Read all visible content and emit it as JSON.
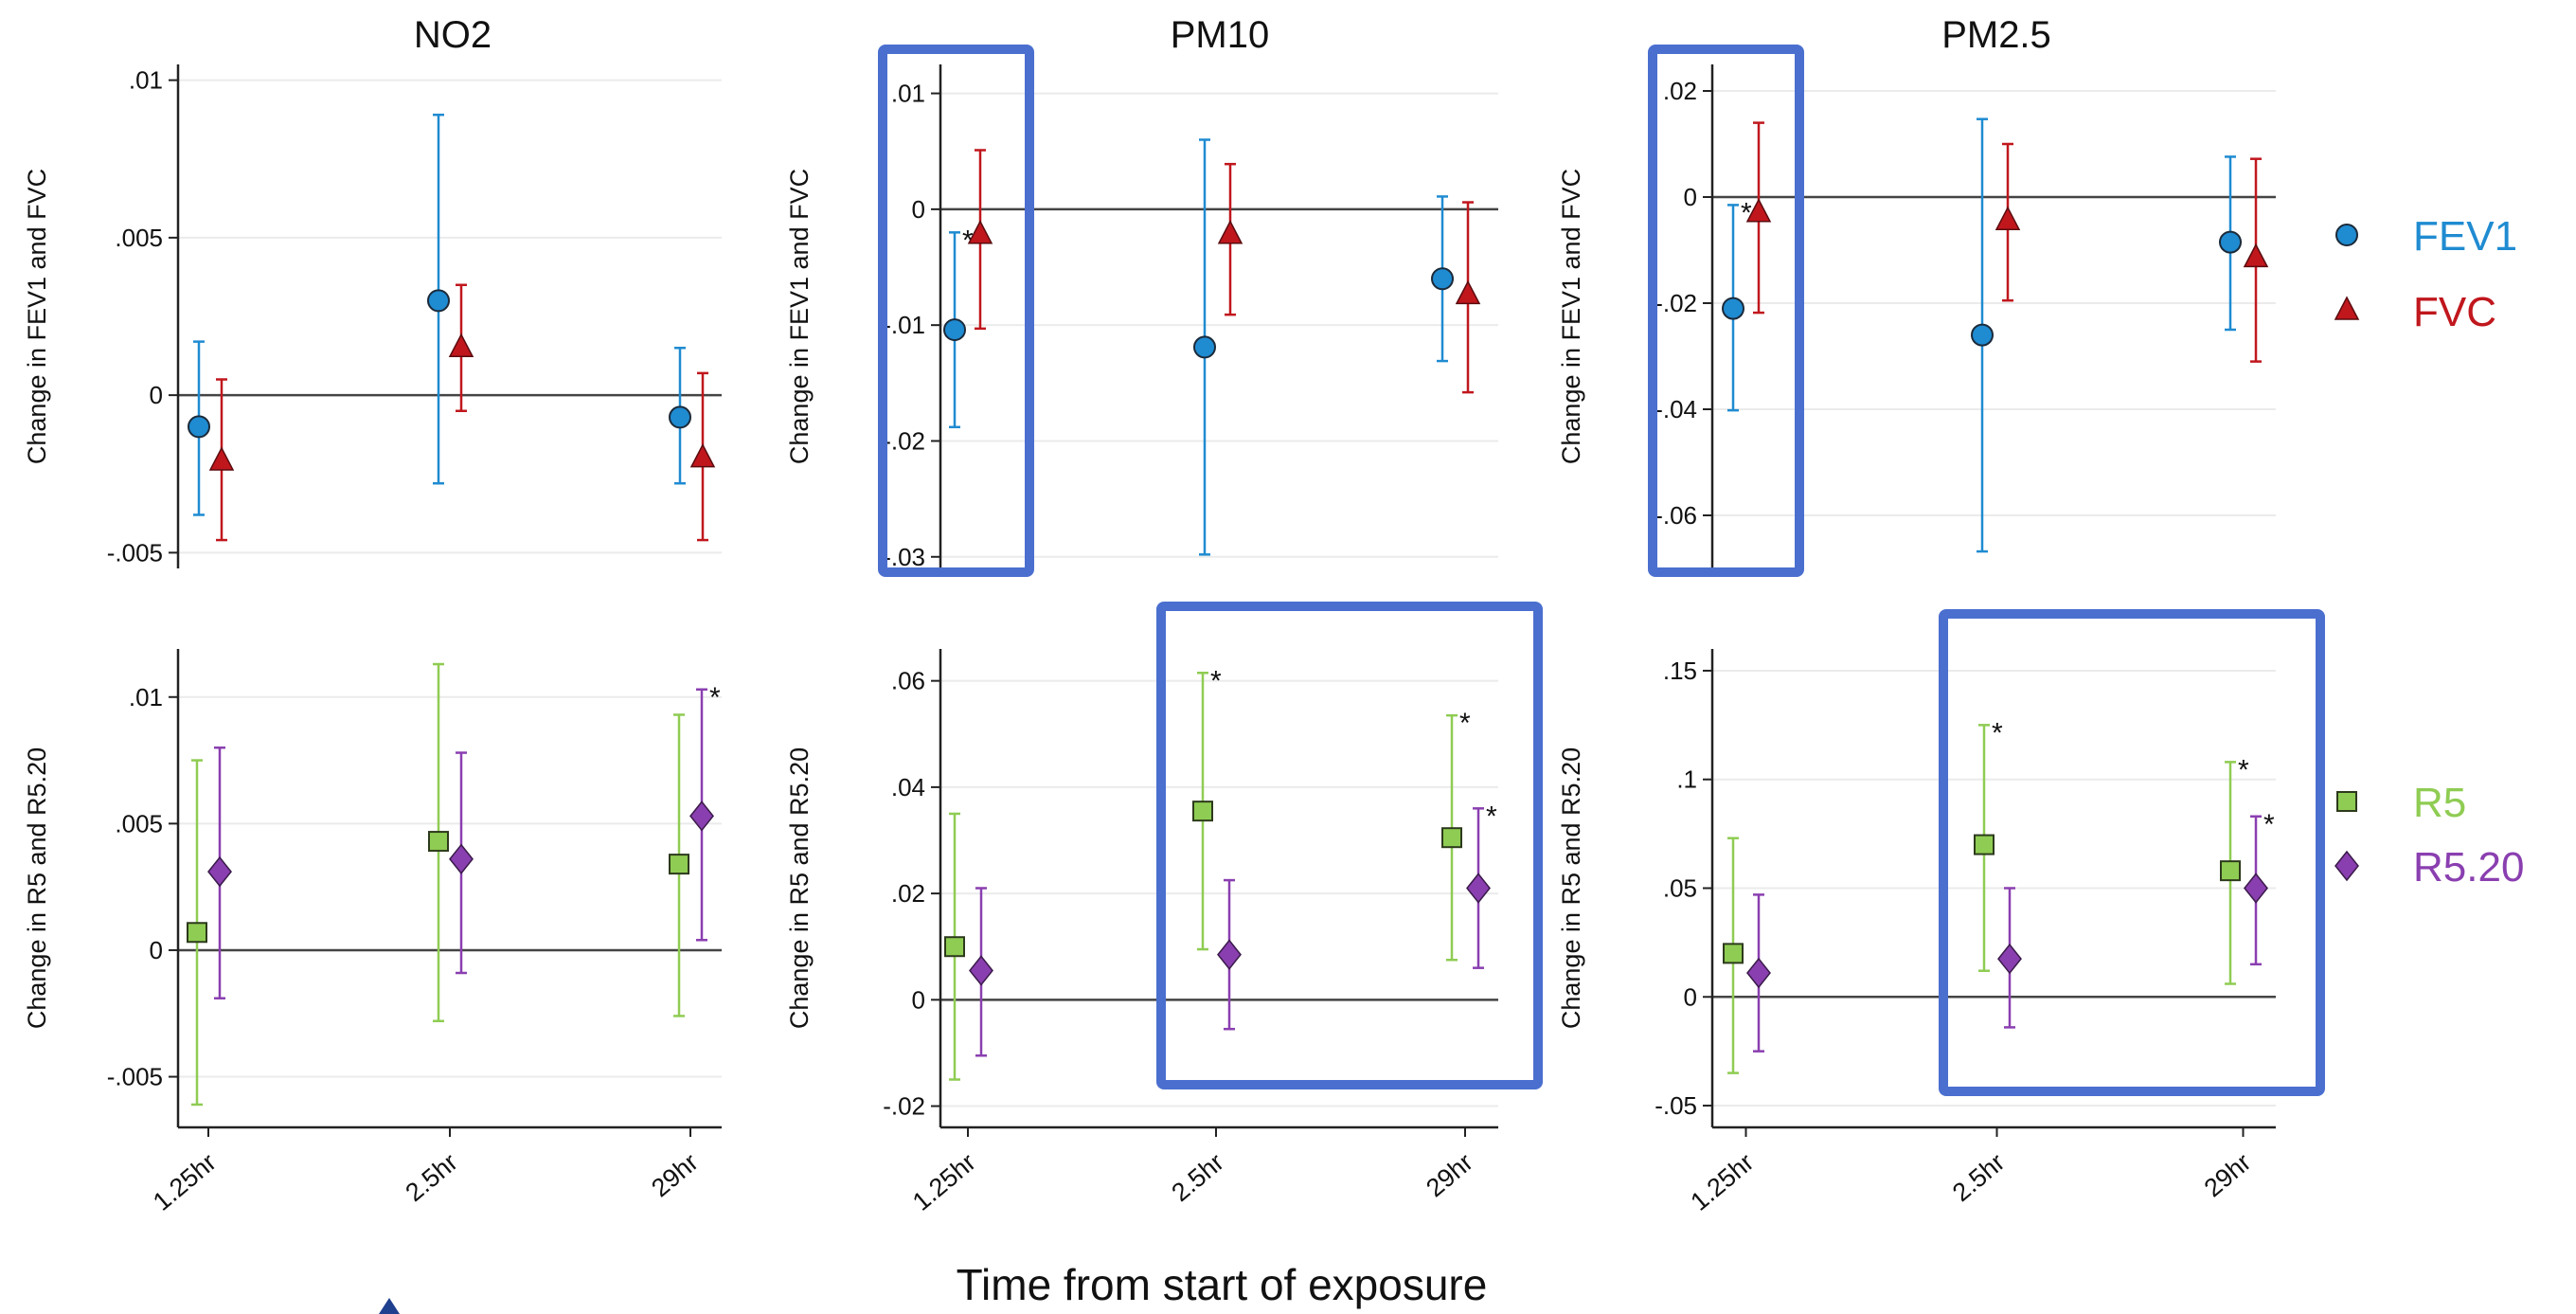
{
  "figure": {
    "xlabel": "Time from start of exposure",
    "colors": {
      "FEV1": "#1f8bd1",
      "FVC": "#c0171d",
      "R5": "#8fcc53",
      "R5.20": "#8a3fb0",
      "highlight_box": "#4a6fcf"
    },
    "legend_top": [
      {
        "name": "FEV1",
        "marker": "circle",
        "color": "#1f8bd1"
      },
      {
        "name": "FVC",
        "marker": "triangle",
        "color": "#c0171d"
      }
    ],
    "legend_bottom": [
      {
        "name": "R5",
        "marker": "square",
        "color": "#8fcc53"
      },
      {
        "name": "R5.20",
        "marker": "diamond",
        "color": "#8a3fb0"
      }
    ]
  },
  "chart_data": [
    {
      "type": "scatter",
      "panel": "NO2 top",
      "title": "NO2",
      "ylabel": "Change in FEV1 and FVC",
      "categories": [
        "1.25hr",
        "2.5hr",
        "29hr"
      ],
      "yticks": [
        ".01",
        ".005",
        "0",
        "-.005"
      ],
      "ylim": [
        -0.0055,
        0.0105
      ],
      "series": [
        {
          "name": "FEV1",
          "marker": "circle",
          "values": [
            -0.001,
            0.003,
            -0.0007
          ],
          "lower": [
            -0.0038,
            -0.0028,
            -0.0028
          ],
          "upper": [
            0.0017,
            0.0089,
            0.0015
          ],
          "star": [
            false,
            false,
            false
          ]
        },
        {
          "name": "FVC",
          "marker": "triangle",
          "values": [
            -0.0021,
            0.0015,
            -0.002
          ],
          "lower": [
            -0.0046,
            -0.0005,
            -0.0046
          ],
          "upper": [
            0.0005,
            0.0035,
            0.0007
          ],
          "star": [
            false,
            false,
            false
          ]
        }
      ]
    },
    {
      "type": "scatter",
      "panel": "PM10 top",
      "title": "PM10",
      "ylabel": "Change in FEV1 and FVC",
      "categories": [
        "1.25hr",
        "2.5hr",
        "29hr"
      ],
      "yticks": [
        ".01",
        "0",
        "-.01",
        "-.02",
        "-.03"
      ],
      "ylim": [
        -0.031,
        0.0125
      ],
      "series": [
        {
          "name": "FEV1",
          "marker": "circle",
          "values": [
            -0.0104,
            -0.0119,
            -0.006
          ],
          "lower": [
            -0.0188,
            -0.0298,
            -0.0131
          ],
          "upper": [
            -0.002,
            0.006,
            0.0011
          ],
          "star": [
            true,
            false,
            false
          ]
        },
        {
          "name": "FVC",
          "marker": "triangle",
          "values": [
            -0.0022,
            -0.0022,
            -0.0074
          ],
          "lower": [
            -0.0103,
            -0.0091,
            -0.0158
          ],
          "upper": [
            0.0051,
            0.0039,
            0.0006
          ],
          "star": [
            false,
            false,
            false
          ]
        }
      ]
    },
    {
      "type": "scatter",
      "panel": "PM2.5 top",
      "title": "PM2.5",
      "ylabel": "Change in FEV1 and FVC",
      "categories": [
        "1.25hr",
        "2.5hr",
        "29hr"
      ],
      "yticks": [
        ".02",
        "0",
        "-.02",
        "-.04",
        "-.06"
      ],
      "ylim": [
        -0.07,
        0.025
      ],
      "series": [
        {
          "name": "FEV1",
          "marker": "circle",
          "values": [
            -0.021,
            -0.026,
            -0.0085
          ],
          "lower": [
            -0.0402,
            -0.0668,
            -0.025
          ],
          "upper": [
            -0.0015,
            0.0147,
            0.0076
          ],
          "star": [
            true,
            false,
            false
          ]
        },
        {
          "name": "FVC",
          "marker": "triangle",
          "values": [
            -0.003,
            -0.0045,
            -0.0115
          ],
          "lower": [
            -0.0218,
            -0.0195,
            -0.031
          ],
          "upper": [
            0.014,
            0.01,
            0.0072
          ],
          "star": [
            false,
            false,
            false
          ]
        }
      ]
    },
    {
      "type": "scatter",
      "panel": "NO2 bottom",
      "ylabel": "Change in R5 and R5.20",
      "categories": [
        "1.25hr",
        "2.5hr",
        "29hr"
      ],
      "yticks": [
        ".01",
        ".005",
        "0",
        "-.005"
      ],
      "ylim": [
        -0.007,
        0.0119
      ],
      "series": [
        {
          "name": "R5",
          "marker": "square",
          "values": [
            0.0007,
            0.0043,
            0.0034
          ],
          "lower": [
            -0.0061,
            -0.0028,
            -0.0026
          ],
          "upper": [
            0.0075,
            0.0113,
            0.0093
          ],
          "star": [
            false,
            false,
            false
          ]
        },
        {
          "name": "R5.20",
          "marker": "diamond",
          "values": [
            0.0031,
            0.0036,
            0.0053
          ],
          "lower": [
            -0.0019,
            -0.0009,
            0.0004
          ],
          "upper": [
            0.008,
            0.0078,
            0.0103
          ],
          "star": [
            false,
            false,
            true
          ]
        }
      ]
    },
    {
      "type": "scatter",
      "panel": "PM10 bottom",
      "ylabel": "Change in R5 and R5.20",
      "categories": [
        "1.25hr",
        "2.5hr",
        "29hr"
      ],
      "yticks": [
        ".06",
        ".04",
        ".02",
        "0",
        "-.02"
      ],
      "ylim": [
        -0.024,
        0.066
      ],
      "series": [
        {
          "name": "R5",
          "marker": "square",
          "values": [
            0.01,
            0.0355,
            0.0305
          ],
          "lower": [
            -0.015,
            0.0095,
            0.0075
          ],
          "upper": [
            0.035,
            0.0615,
            0.0535
          ],
          "star": [
            false,
            true,
            true
          ]
        },
        {
          "name": "R5.20",
          "marker": "diamond",
          "values": [
            0.0055,
            0.0085,
            0.021
          ],
          "lower": [
            -0.0105,
            -0.0055,
            0.006
          ],
          "upper": [
            0.021,
            0.0225,
            0.036
          ],
          "star": [
            false,
            false,
            true
          ]
        }
      ]
    },
    {
      "type": "scatter",
      "panel": "PM2.5 bottom",
      "ylabel": "Change in R5 and R5.20",
      "categories": [
        "1.25hr",
        "2.5hr",
        "29hr"
      ],
      "yticks": [
        ".15",
        ".1",
        ".05",
        "0",
        "-.05"
      ],
      "ylim": [
        -0.06,
        0.16
      ],
      "series": [
        {
          "name": "R5",
          "marker": "square",
          "values": [
            0.02,
            0.07,
            0.058
          ],
          "lower": [
            -0.035,
            0.012,
            0.006
          ],
          "upper": [
            0.073,
            0.125,
            0.108
          ],
          "star": [
            false,
            true,
            true
          ]
        },
        {
          "name": "R5.20",
          "marker": "diamond",
          "values": [
            0.011,
            0.0175,
            0.05
          ],
          "lower": [
            -0.025,
            -0.014,
            0.015
          ],
          "upper": [
            0.047,
            0.05,
            0.083
          ],
          "star": [
            false,
            false,
            true
          ]
        }
      ]
    }
  ]
}
